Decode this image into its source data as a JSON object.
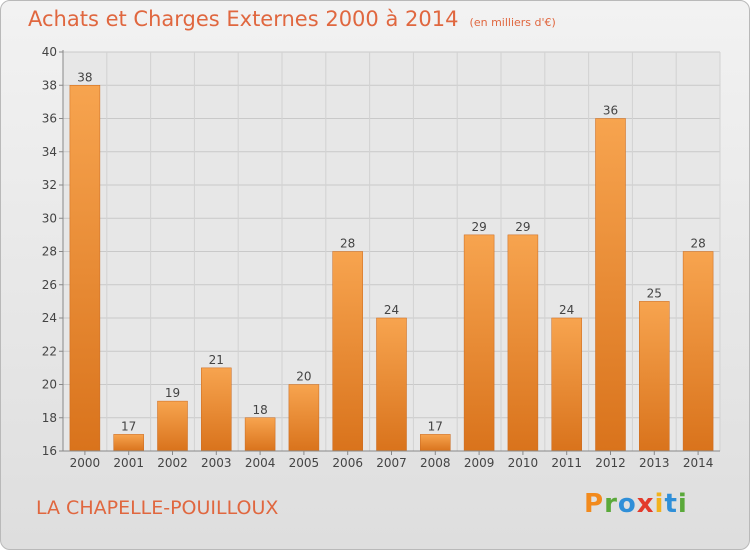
{
  "chart_data": {
    "type": "bar",
    "title": "Achats et Charges Externes 2000 à 2014",
    "subtitle": "(en milliers d'€)",
    "categories": [
      "2000",
      "2001",
      "2002",
      "2003",
      "2004",
      "2005",
      "2006",
      "2007",
      "2008",
      "2009",
      "2010",
      "2011",
      "2012",
      "2013",
      "2014"
    ],
    "values": [
      38,
      17,
      19,
      21,
      18,
      20,
      28,
      24,
      17,
      29,
      29,
      24,
      36,
      25,
      28
    ],
    "ylim": [
      16,
      40
    ],
    "yticks": [
      16,
      18,
      20,
      22,
      24,
      26,
      28,
      30,
      32,
      34,
      36,
      38,
      40
    ],
    "grid": true,
    "legend": "none",
    "bar_color": "#e88a2e"
  },
  "footer": {
    "commune": "LA CHAPELLE-POUILLOUX",
    "brand": "Proxiti"
  },
  "colors": {
    "accent": "#e0673f",
    "brand_letters": [
      "#f28a1d",
      "#5aa93a",
      "#2f8fd8",
      "#e33a2b",
      "#f2b21d",
      "#2f8fd8",
      "#5aa93a"
    ]
  }
}
